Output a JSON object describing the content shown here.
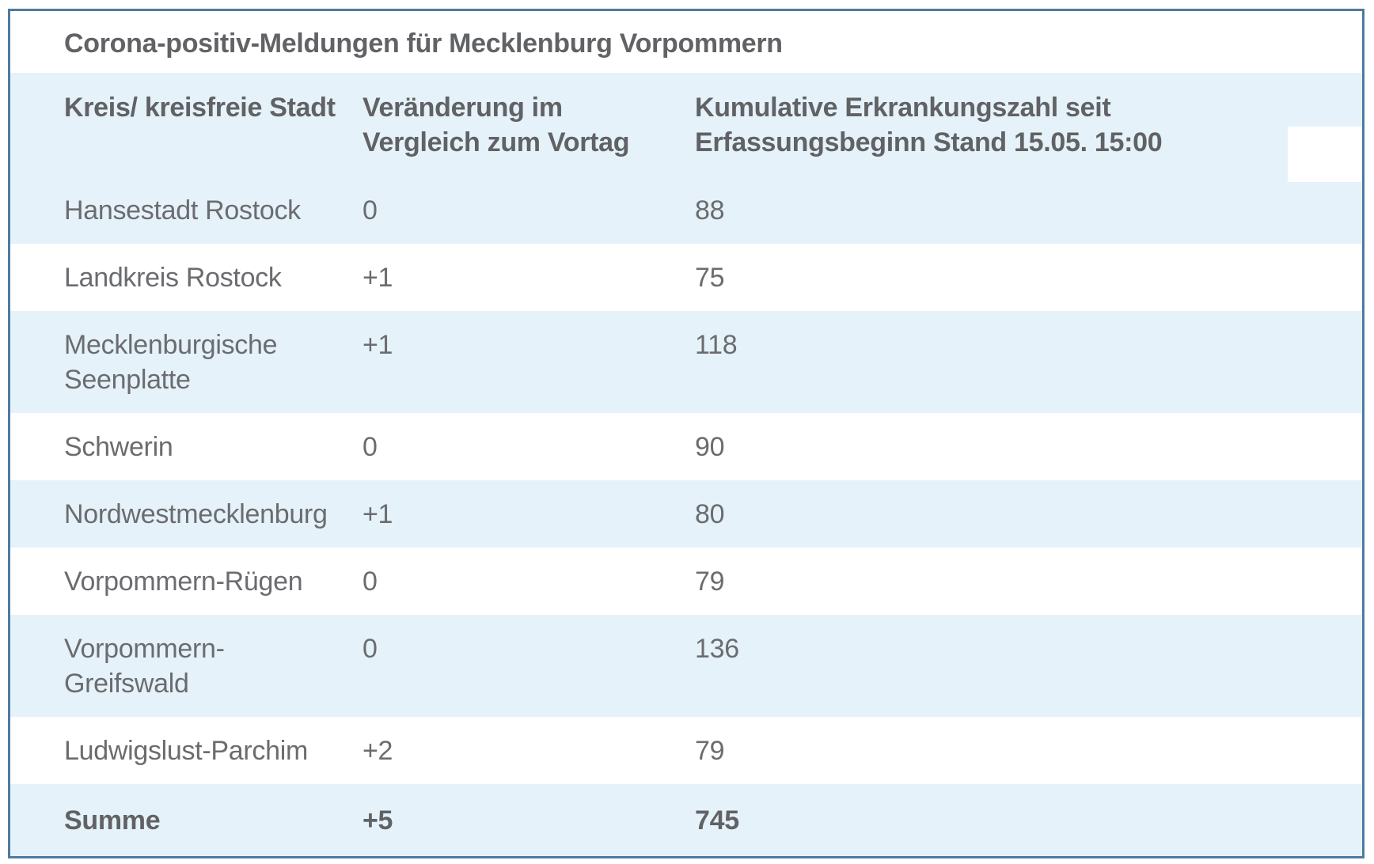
{
  "title": "Corona-positiv-Meldungen für Mecklenburg Vorpommern",
  "table": {
    "columns": [
      {
        "label": "Kreis/ kreisfreie Stadt"
      },
      {
        "label": "Veränderung im\nVergleich zum Vortag"
      },
      {
        "label": "Kumulative Erkrankungszahl seit\nErfassungsbeginn Stand 15.05. 15:00"
      }
    ],
    "rows": [
      {
        "name": "Hansestadt Rostock",
        "change": "0",
        "cumulative": "88"
      },
      {
        "name": "Landkreis Rostock",
        "change": "+1",
        "cumulative": "75"
      },
      {
        "name": "Mecklenburgische\nSeenplatte",
        "change": "+1",
        "cumulative": "118"
      },
      {
        "name": "Schwerin",
        "change": "0",
        "cumulative": "90"
      },
      {
        "name": "Nordwestmecklenburg",
        "change": "+1",
        "cumulative": "80"
      },
      {
        "name": "Vorpommern-Rügen",
        "change": "0",
        "cumulative": "79"
      },
      {
        "name": "Vorpommern-\nGreifswald",
        "change": "0",
        "cumulative": "136"
      },
      {
        "name": "Ludwigslust-Parchim",
        "change": "+2",
        "cumulative": "79"
      },
      {
        "name": "Summe",
        "change": "+5",
        "cumulative": "745"
      }
    ]
  },
  "colors": {
    "row_highlight": "#e5f2fa",
    "border": "#4e7ba0",
    "text": "#6b6c6f",
    "text_bold": "#616265"
  },
  "chart_data": {
    "type": "table",
    "title": "Corona-positiv-Meldungen für Mecklenburg Vorpommern",
    "columns": [
      "Kreis/ kreisfreie Stadt",
      "Veränderung im Vergleich zum Vortag",
      "Kumulative Erkrankungszahl seit Erfassungsbeginn Stand 15.05. 15:00"
    ],
    "categories": [
      "Hansestadt Rostock",
      "Landkreis Rostock",
      "Mecklenburgische Seenplatte",
      "Schwerin",
      "Nordwestmecklenburg",
      "Vorpommern-Rügen",
      "Vorpommern-Greifswald",
      "Ludwigslust-Parchim",
      "Summe"
    ],
    "series": [
      {
        "name": "Veränderung im Vergleich zum Vortag",
        "values": [
          0,
          1,
          1,
          0,
          1,
          0,
          0,
          2,
          5
        ]
      },
      {
        "name": "Kumulative Erkrankungszahl",
        "values": [
          88,
          75,
          118,
          90,
          80,
          79,
          136,
          79,
          745
        ]
      }
    ]
  }
}
